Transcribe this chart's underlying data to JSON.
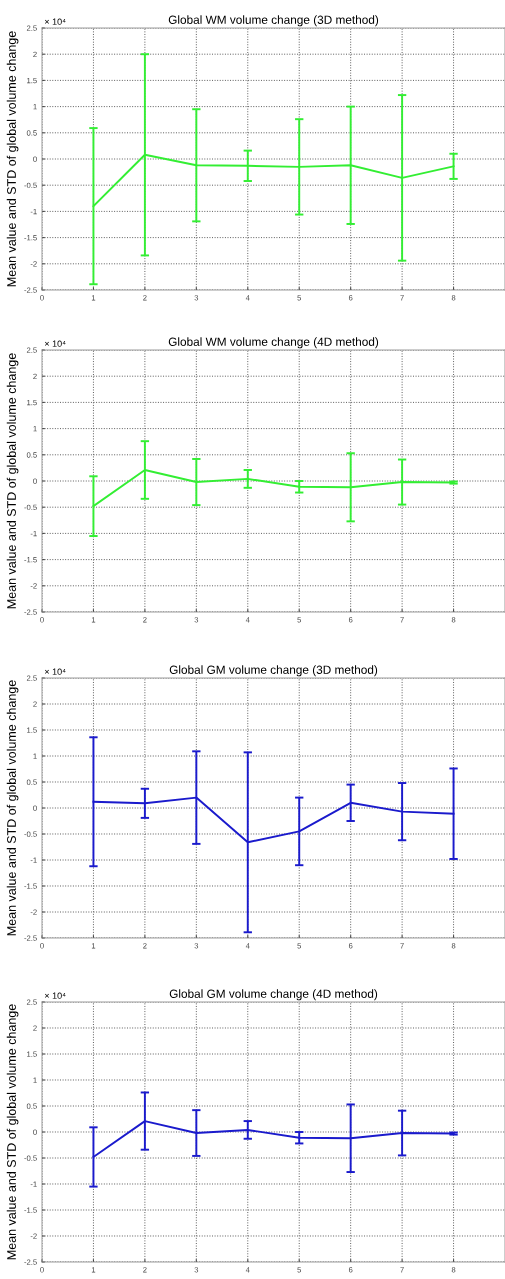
{
  "chart_data": [
    {
      "type": "line",
      "title": "Global WM volume change (3D method)",
      "ylabel": "Mean value and STD of global volume change",
      "annotations": [
        "× 10⁴"
      ],
      "x": [
        1,
        2,
        3,
        4,
        5,
        6,
        7,
        8
      ],
      "xlim": [
        0,
        9
      ],
      "xticks": [
        0,
        1,
        2,
        3,
        4,
        5,
        6,
        7,
        8
      ],
      "ylim": [
        -2.5,
        2.5
      ],
      "yticks": [
        -2.5,
        -2,
        -1.5,
        -1,
        -0.5,
        0,
        0.5,
        1,
        1.5,
        2,
        2.5
      ],
      "grid": true,
      "marker": "none",
      "line_style": "solid",
      "series": [
        {
          "color": "#33ee33",
          "values": [
            -0.9,
            0.08,
            -0.12,
            -0.13,
            -0.15,
            -0.12,
            -0.36,
            -0.14
          ],
          "errors": [
            1.49,
            1.92,
            1.07,
            0.29,
            0.91,
            1.12,
            1.58,
            0.24
          ]
        }
      ]
    },
    {
      "type": "line",
      "title": "Global WM volume change (4D method)",
      "ylabel": "Mean value and STD of global volume change",
      "annotations": [
        "× 10⁴"
      ],
      "x": [
        1,
        2,
        3,
        4,
        5,
        6,
        7,
        8
      ],
      "xlim": [
        0,
        9
      ],
      "xticks": [
        0,
        1,
        2,
        3,
        4,
        5,
        6,
        7,
        8
      ],
      "ylim": [
        -2.5,
        2.5
      ],
      "yticks": [
        -2.5,
        -2,
        -1.5,
        -1,
        -0.5,
        0,
        0.5,
        1,
        1.5,
        2,
        2.5
      ],
      "grid": true,
      "marker": "none",
      "line_style": "solid",
      "series": [
        {
          "color": "#33ee33",
          "values": [
            -0.48,
            0.21,
            -0.02,
            0.04,
            -0.11,
            -0.12,
            -0.02,
            -0.03
          ],
          "errors": [
            0.57,
            0.55,
            0.44,
            0.17,
            0.11,
            0.65,
            0.43,
            0.02
          ]
        }
      ]
    },
    {
      "type": "line",
      "title": "Global GM volume change (3D method)",
      "ylabel": "Mean value and STD of global volume change",
      "annotations": [
        "× 10⁴"
      ],
      "x": [
        1,
        2,
        3,
        4,
        5,
        6,
        7,
        8
      ],
      "xlim": [
        0,
        9
      ],
      "xticks": [
        0,
        1,
        2,
        3,
        4,
        5,
        6,
        7,
        8
      ],
      "ylim": [
        -2.5,
        2.5
      ],
      "yticks": [
        -2.5,
        -2,
        -1.5,
        -1,
        -0.5,
        0,
        0.5,
        1,
        1.5,
        2,
        2.5
      ],
      "grid": true,
      "marker": "none",
      "line_style": "solid",
      "series": [
        {
          "color": "#1a1acc",
          "values": [
            0.12,
            0.09,
            0.2,
            -0.66,
            -0.45,
            0.1,
            -0.07,
            -0.11
          ],
          "errors": [
            1.24,
            0.28,
            0.89,
            1.73,
            0.65,
            0.35,
            0.55,
            0.87
          ]
        }
      ]
    },
    {
      "type": "line",
      "title": "Global GM volume change (4D method)",
      "ylabel": "Mean value and STD of global volume change",
      "annotations": [
        "× 10⁴"
      ],
      "x": [
        1,
        2,
        3,
        4,
        5,
        6,
        7,
        8
      ],
      "xlim": [
        0,
        9
      ],
      "xticks": [
        0,
        1,
        2,
        3,
        4,
        5,
        6,
        7,
        8
      ],
      "ylim": [
        -2.5,
        2.5
      ],
      "yticks": [
        -2.5,
        -2,
        -1.5,
        -1,
        -0.5,
        0,
        0.5,
        1,
        1.5,
        2,
        2.5
      ],
      "grid": true,
      "marker": "none",
      "line_style": "solid",
      "series": [
        {
          "color": "#1a1acc",
          "values": [
            -0.48,
            0.21,
            -0.02,
            0.04,
            -0.11,
            -0.12,
            -0.02,
            -0.03
          ],
          "errors": [
            0.57,
            0.55,
            0.44,
            0.17,
            0.11,
            0.65,
            0.43,
            0.02
          ]
        }
      ]
    }
  ]
}
